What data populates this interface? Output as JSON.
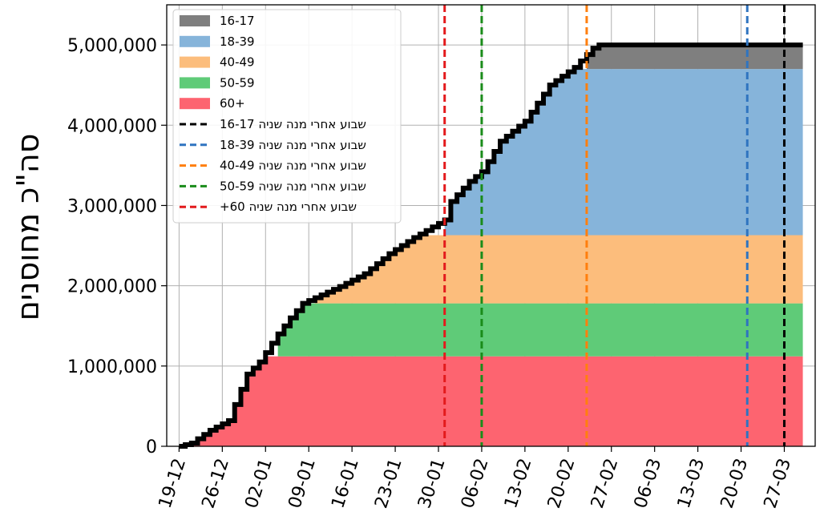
{
  "chart_data": {
    "type": "area",
    "title": "",
    "xlabel": "",
    "ylabel": "סה\"כ מחוסנים",
    "x_ticks": [
      "19-12",
      "26-12",
      "02-01",
      "09-01",
      "16-01",
      "23-01",
      "30-01",
      "06-02",
      "13-02",
      "20-02",
      "27-02",
      "06-03",
      "13-03",
      "20-03",
      "27-03"
    ],
    "y_ticks": [
      "0",
      "1,000,000",
      "2,000,000",
      "3,000,000",
      "4,000,000",
      "5,000,000"
    ],
    "xlim": [
      "2020-12-17",
      "2021-04-01"
    ],
    "ylim": [
      0,
      5500000
    ],
    "grid": true,
    "legend_position": "upper-left",
    "stacked_series": [
      {
        "name": "60+",
        "color": "#fd6470",
        "start": "2020-12-20",
        "end": "2021-03-30",
        "saturation_date": "2021-01-04",
        "final_value": 1120000
      },
      {
        "name": "50-59",
        "color": "#5fcb78",
        "start": "2021-01-04",
        "end": "2021-03-30",
        "saturation_date": "2021-01-10",
        "final_value": 660000
      },
      {
        "name": "40-49",
        "color": "#fcbd7c",
        "start": "2021-01-10",
        "end": "2021-03-30",
        "saturation_date": "2021-01-31",
        "final_value": 850000
      },
      {
        "name": "18-39",
        "color": "#86b4da",
        "start": "2021-01-31",
        "end": "2021-03-30",
        "saturation_date": "2021-02-23",
        "final_value": 2070000
      },
      {
        "name": "16-17",
        "color": "#7f7f7f",
        "start": "2021-02-23",
        "end": "2021-03-30",
        "saturation_date": "2021-02-25",
        "final_value": 300000
      }
    ],
    "total_line": {
      "color": "#000000",
      "points": [
        [
          "2020-12-19",
          0
        ],
        [
          "2020-12-21",
          40000
        ],
        [
          "2020-12-24",
          200000
        ],
        [
          "2020-12-27",
          320000
        ],
        [
          "2020-12-28",
          520000
        ],
        [
          "2020-12-30",
          900000
        ],
        [
          "2021-01-01",
          1050000
        ],
        [
          "2021-01-04",
          1400000
        ],
        [
          "2021-01-06",
          1600000
        ],
        [
          "2021-01-08",
          1780000
        ],
        [
          "2021-01-10",
          1850000
        ],
        [
          "2021-01-14",
          1990000
        ],
        [
          "2021-01-18",
          2150000
        ],
        [
          "2021-01-22",
          2400000
        ],
        [
          "2021-01-26",
          2600000
        ],
        [
          "2021-01-31",
          2820000
        ],
        [
          "2021-02-01",
          3050000
        ],
        [
          "2021-02-04",
          3300000
        ],
        [
          "2021-02-06",
          3420000
        ],
        [
          "2021-02-09",
          3800000
        ],
        [
          "2021-02-13",
          4050000
        ],
        [
          "2021-02-17",
          4500000
        ],
        [
          "2021-02-21",
          4720000
        ],
        [
          "2021-02-24",
          4960000
        ],
        [
          "2021-02-25",
          5000000
        ],
        [
          "2021-03-30",
          5000000
        ]
      ]
    },
    "vlines": [
      {
        "label": "16-17 שבוע אחרי מנה שניה",
        "date": "2021-03-27",
        "color": "#000000"
      },
      {
        "label": "18-39 שבוע אחרי מנה שניה",
        "date": "2021-03-21",
        "color": "#2f74c0"
      },
      {
        "label": "40-49 שבוע אחרי מנה שניה",
        "date": "2021-02-23",
        "color": "#ff7f0e"
      },
      {
        "label": "50-59 שבוע אחרי מנה שניה",
        "date": "2021-02-06",
        "color": "#1a8c1a"
      },
      {
        "label": "+60 שבוע אחרי מנה שניה",
        "date": "2021-01-31",
        "color": "#e31a1c"
      }
    ],
    "legend": [
      {
        "label": "16-17",
        "kind": "patch",
        "color": "#7f7f7f"
      },
      {
        "label": "18-39",
        "kind": "patch",
        "color": "#86b4da"
      },
      {
        "label": "40-49",
        "kind": "patch",
        "color": "#fcbd7c"
      },
      {
        "label": "50-59",
        "kind": "patch",
        "color": "#5fcb78"
      },
      {
        "label": "60+",
        "kind": "patch",
        "color": "#fd6470"
      },
      {
        "label": "16-17 שבוע אחרי מנה שניה",
        "kind": "dashed",
        "color": "#000000"
      },
      {
        "label": "18-39 שבוע אחרי מנה שניה",
        "kind": "dashed",
        "color": "#2f74c0"
      },
      {
        "label": "40-49 שבוע אחרי מנה שניה",
        "kind": "dashed",
        "color": "#ff7f0e"
      },
      {
        "label": "50-59 שבוע אחרי מנה שניה",
        "kind": "dashed",
        "color": "#1a8c1a"
      },
      {
        "label": "+60 שבוע אחרי מנה שניה",
        "kind": "dashed",
        "color": "#e31a1c"
      }
    ]
  }
}
